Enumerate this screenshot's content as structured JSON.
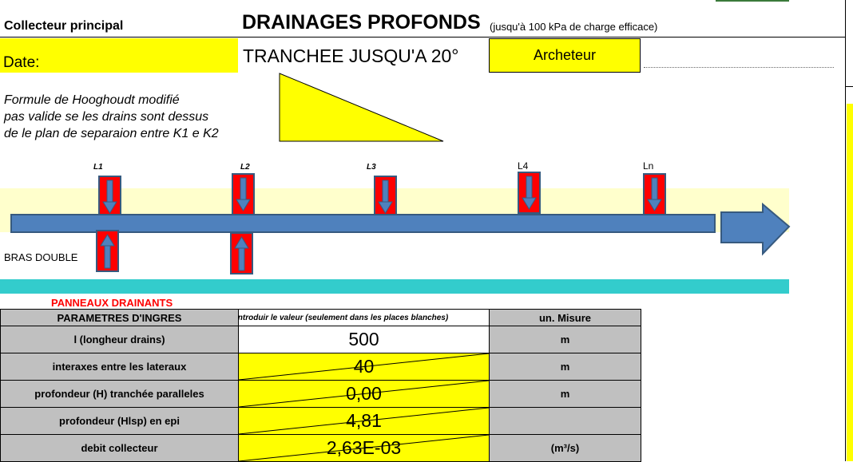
{
  "header": {
    "left_label": "Collecteur principal",
    "title": "DRAINAGES PROFONDS",
    "subtitle": "(jusqu'à 100 kPa de charge efficace)",
    "date_label": "Date:",
    "trench_title": "TRANCHEE JUSQU'A 20°",
    "author": "Archeteur"
  },
  "formula_note": {
    "line1": "Formule de Hooghoudt modifié",
    "line2": "pas valide se les drains sont dessus",
    "line3": "de le plan de separaion entre K1 e K2"
  },
  "diagram": {
    "labels": [
      "L1",
      "L2",
      "L3",
      "L4",
      "Ln"
    ],
    "double_arm_label": "BRAS DOUBLE",
    "colors": {
      "pipe": "#4f81bd",
      "drain": "#ff0000",
      "band": "#ffffcc",
      "teal": "#33cccc"
    }
  },
  "table": {
    "section_title": "PANNEAUX DRAINANTS",
    "headers": {
      "param": "PARAMETRES D'INGRES",
      "value": "Introduir le valeur (seulement dans les places blanches)",
      "unit": "un. Misure"
    },
    "rows": [
      {
        "label": "l (longheur drains)",
        "value": "500",
        "unit": "m",
        "editable": true
      },
      {
        "label": "interaxes entre les lateraux",
        "value": "40",
        "unit": "m",
        "editable": false
      },
      {
        "label": "profondeur (H) tranchée paralleles",
        "value": "0,00",
        "unit": "m",
        "editable": false
      },
      {
        "label": "profondeur (Hlsp) en epi",
        "value": "4,81",
        "unit": "",
        "editable": false
      },
      {
        "label": "debit collecteur",
        "value": "2,63E-03",
        "unit": "(m³/s)",
        "editable": false
      }
    ]
  }
}
